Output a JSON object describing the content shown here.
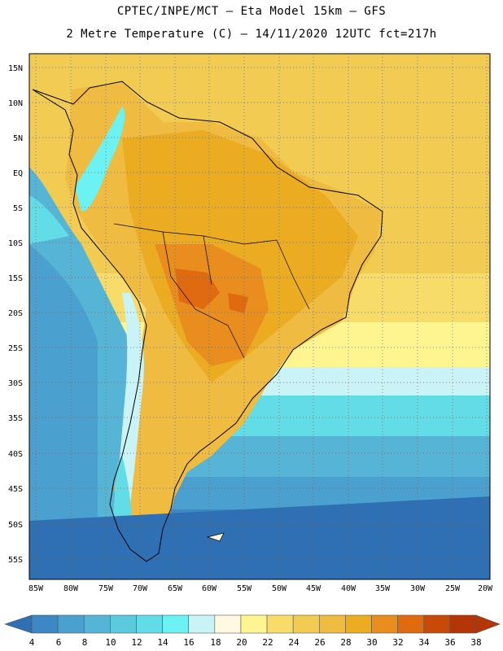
{
  "header": {
    "line1": "CPTEC/INPE/MCT –  Eta Model 15km – GFS",
    "line2": "2 Metre Temperature (C) – 14/11/2020 12UTC fct=217h"
  },
  "map": {
    "lat_labels": [
      "15N",
      "10N",
      "5N",
      "EQ",
      "5S",
      "10S",
      "15S",
      "20S",
      "25S",
      "30S",
      "35S",
      "40S",
      "45S",
      "50S",
      "55S"
    ],
    "lon_labels": [
      "85W",
      "80W",
      "75W",
      "70W",
      "65W",
      "60W",
      "55W",
      "50W",
      "45W",
      "40W",
      "35W",
      "30W",
      "25W",
      "20W"
    ]
  },
  "legend": {
    "labels": [
      "4",
      "6",
      "8",
      "10",
      "12",
      "14",
      "16",
      "18",
      "20",
      "22",
      "24",
      "26",
      "28",
      "30",
      "32",
      "34",
      "36",
      "38"
    ],
    "colors": [
      "#2f6fb3",
      "#3d87c4",
      "#4aa0cf",
      "#56b5d6",
      "#5ccadd",
      "#62dce6",
      "#6cf2f2",
      "#c9f3f6",
      "#fff8e2",
      "#fff590",
      "#f8dc6a",
      "#f2cc52",
      "#efbb40",
      "#ecac22",
      "#e88d1e",
      "#e06a10",
      "#c84a08",
      "#b43508"
    ]
  }
}
